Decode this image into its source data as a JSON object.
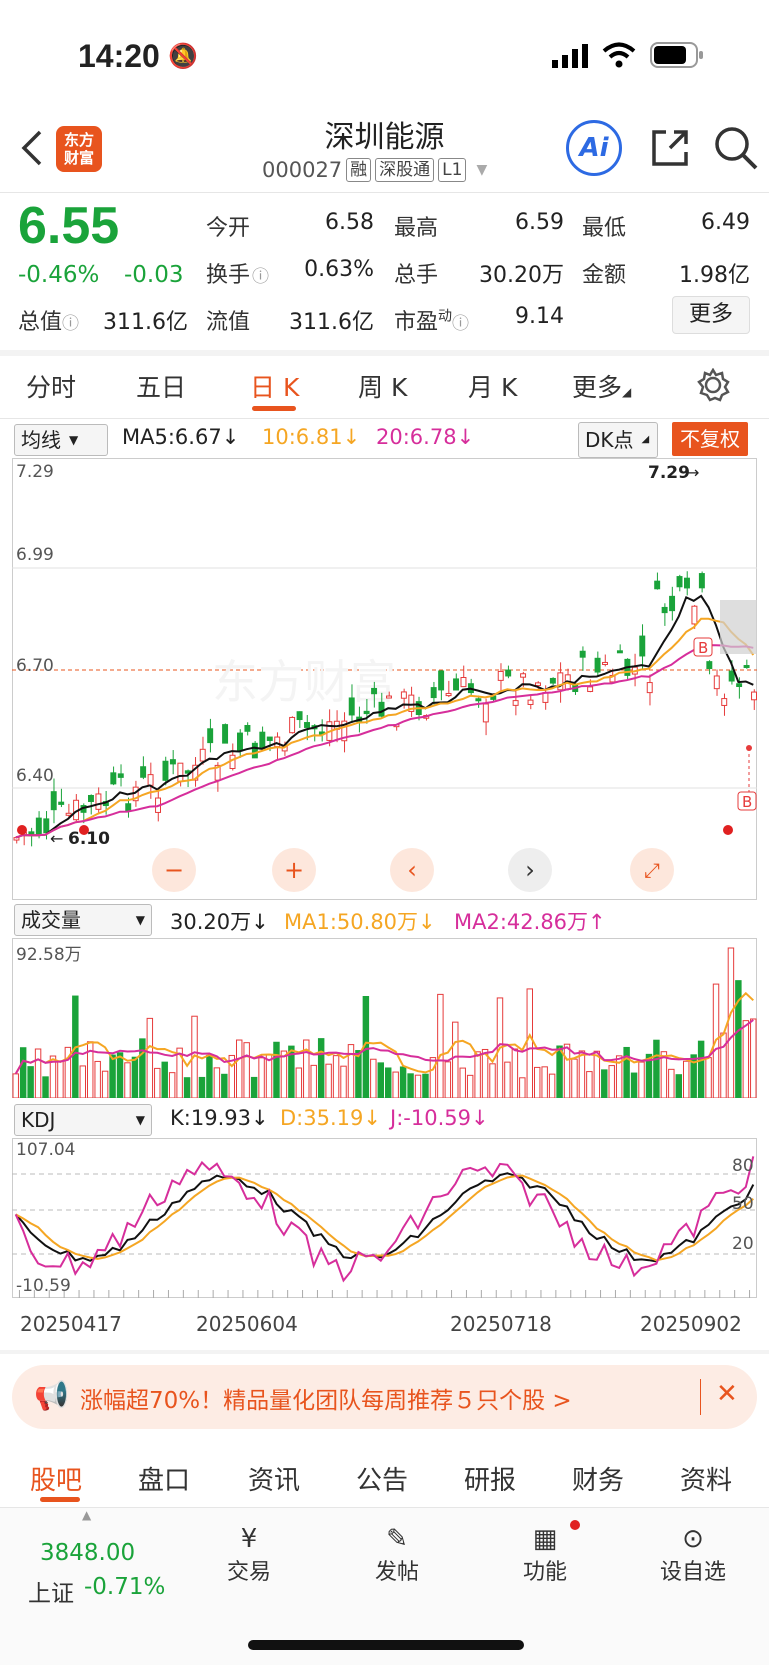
{
  "status": {
    "time": "14:20"
  },
  "header": {
    "logo_text": "东方\n财富",
    "name": "深圳能源",
    "code": "000027",
    "tags": [
      "融",
      "深股通",
      "L1"
    ]
  },
  "quote": {
    "price": "6.55",
    "change_pct": "-0.46%",
    "change_abs": "-0.03",
    "open_label": "今开",
    "open": "6.58",
    "high_label": "最高",
    "high": "6.59",
    "low_label": "最低",
    "low": "6.49",
    "turnover_label": "换手",
    "turnover": "0.63%",
    "volume_label": "总手",
    "volume": "30.20万",
    "amount_label": "金额",
    "amount": "1.98亿",
    "mktcap_label": "总值",
    "mktcap": "311.6亿",
    "float_label": "流值",
    "float": "311.6亿",
    "pe_label": "市盈",
    "pe_sup": "动",
    "pe": "9.14",
    "more": "更多"
  },
  "tabs": [
    "分时",
    "五日",
    "日 K",
    "周 K",
    "月 K",
    "更多"
  ],
  "kline": {
    "indicator": "均线",
    "ma5": "MA5:6.67",
    "ma10": "10:6.81",
    "ma20": "20:6.78",
    "dk": "DK点",
    "restore": "不复权",
    "y_labels": [
      "7.29",
      "6.99",
      "6.70",
      "6.40"
    ],
    "max_marker": "7.29",
    "min_marker": "6.10",
    "b_marker": "B"
  },
  "volume": {
    "indicator": "成交量",
    "value": "30.20万",
    "ma1": "MA1:50.80万",
    "ma2": "MA2:42.86万",
    "y_max": "92.58万"
  },
  "kdj": {
    "indicator": "KDJ",
    "k": "K:19.93",
    "d": "D:35.19",
    "j": "J:-10.59",
    "y_max": "107.04",
    "y_min": "-10.59",
    "levels": [
      "80",
      "50",
      "20"
    ]
  },
  "dates": [
    "20250417",
    "20250604",
    "20250718",
    "20250902"
  ],
  "banner": {
    "text": "涨幅超70%！精品量化团队每周推荐５只个股 >"
  },
  "bottom_tabs": [
    "股吧",
    "盘口",
    "资讯",
    "公告",
    "研报",
    "财务",
    "资料"
  ],
  "index": {
    "value": "3848.00",
    "name": "上证",
    "change": "-0.71%"
  },
  "bottom_nav": [
    "交易",
    "发帖",
    "功能",
    "设自选"
  ],
  "colors": {
    "up": "#e63b3b",
    "down": "#1aa33a",
    "accent": "#e8541e",
    "ma10": "#f5a623",
    "ma20": "#d62e9b"
  }
}
